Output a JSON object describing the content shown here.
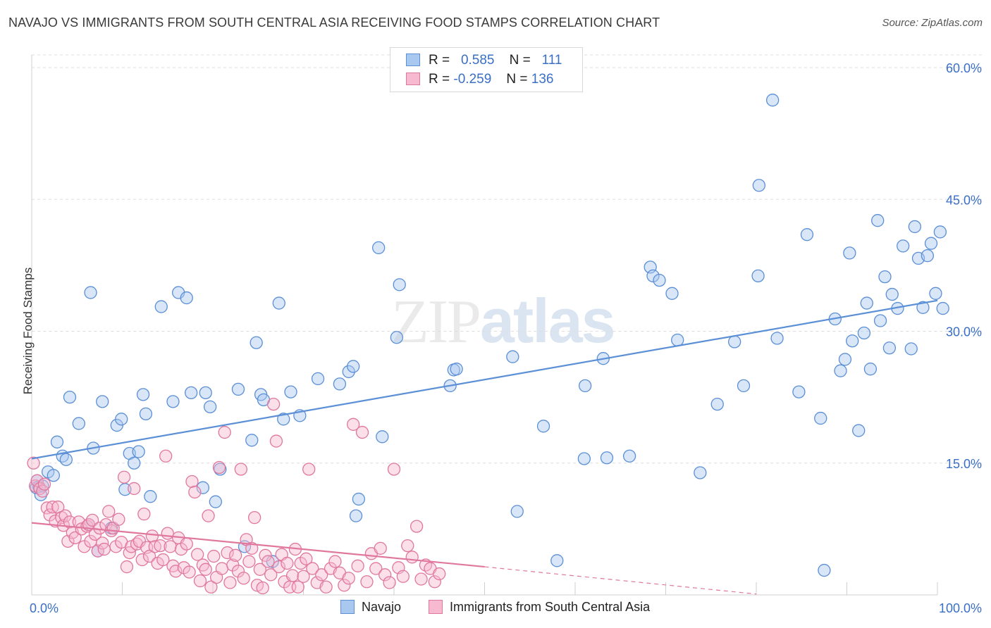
{
  "title": "NAVAJO VS IMMIGRANTS FROM SOUTH CENTRAL ASIA RECEIVING FOOD STAMPS CORRELATION CHART",
  "source": "Source: ZipAtlas.com",
  "watermark": {
    "zip": "ZIP",
    "atlas": "atlas"
  },
  "stats": [
    {
      "r_label": "R =",
      "r_value": "0.585",
      "n_label": "N =",
      "n_value": "111",
      "color": "#a9c8f0",
      "edge": "#5b8fd6"
    },
    {
      "r_label": "R =",
      "r_value": "-0.259",
      "n_label": "N =",
      "n_value": "136",
      "color": "#f7b9cf",
      "edge": "#e0789e"
    }
  ],
  "legend": [
    {
      "label": "Navajo",
      "color": "#a9c8f0",
      "edge": "#5b8fd6"
    },
    {
      "label": "Immigrants from South Central Asia",
      "color": "#f7b9cf",
      "edge": "#e0789e"
    }
  ],
  "chart_data": {
    "type": "scatter",
    "title": "NAVAJO VS IMMIGRANTS FROM SOUTH CENTRAL ASIA RECEIVING FOOD STAMPS CORRELATION CHART",
    "xlabel": "",
    "ylabel": "Receiving Food Stamps",
    "xlim": [
      0,
      100
    ],
    "ylim": [
      0,
      60
    ],
    "x_tick_labels": [
      "0.0%",
      "100.0%"
    ],
    "y_ticks": [
      15,
      30,
      45,
      60
    ],
    "y_tick_labels": [
      "15.0%",
      "30.0%",
      "45.0%",
      "60.0%"
    ],
    "grid": true,
    "legend_position": "bottom-center",
    "series": [
      {
        "name": "Navajo",
        "color": "#5b8fd6",
        "fill": "#a9c8f0",
        "trend": {
          "x": [
            0,
            100
          ],
          "y": [
            15.5,
            33.5
          ],
          "style": "solid"
        },
        "points": [
          [
            0.5,
            12.2
          ],
          [
            0.6,
            13.0
          ],
          [
            0.8,
            12.3
          ],
          [
            1.0,
            11.4
          ],
          [
            1.2,
            12.4
          ],
          [
            1.8,
            14.0
          ],
          [
            2.4,
            13.6
          ],
          [
            2.8,
            17.4
          ],
          [
            3.4,
            15.8
          ],
          [
            3.8,
            15.4
          ],
          [
            4.2,
            22.5
          ],
          [
            5.2,
            19.5
          ],
          [
            6.3,
            8.0
          ],
          [
            6.5,
            34.4
          ],
          [
            6.8,
            16.7
          ],
          [
            7.3,
            5.0
          ],
          [
            7.8,
            22.0
          ],
          [
            8.8,
            7.6
          ],
          [
            9.4,
            19.3
          ],
          [
            9.9,
            20.0
          ],
          [
            10.3,
            12.0
          ],
          [
            10.8,
            16.1
          ],
          [
            11.3,
            15.0
          ],
          [
            11.8,
            16.3
          ],
          [
            12.3,
            22.8
          ],
          [
            12.6,
            20.6
          ],
          [
            13.1,
            11.2
          ],
          [
            14.3,
            32.8
          ],
          [
            15.6,
            22.0
          ],
          [
            16.2,
            34.4
          ],
          [
            17.1,
            33.8
          ],
          [
            17.6,
            23.0
          ],
          [
            18.9,
            12.2
          ],
          [
            19.2,
            23.0
          ],
          [
            19.7,
            21.4
          ],
          [
            20.3,
            10.6
          ],
          [
            20.8,
            14.3
          ],
          [
            22.8,
            23.4
          ],
          [
            23.5,
            5.5
          ],
          [
            24.3,
            17.6
          ],
          [
            24.8,
            28.7
          ],
          [
            25.3,
            22.8
          ],
          [
            25.6,
            22.2
          ],
          [
            26.6,
            3.8
          ],
          [
            27.3,
            33.2
          ],
          [
            27.8,
            20.0
          ],
          [
            28.6,
            23.1
          ],
          [
            29.6,
            20.4
          ],
          [
            31.6,
            24.6
          ],
          [
            34.0,
            24.0
          ],
          [
            35.0,
            25.4
          ],
          [
            35.5,
            26.0
          ],
          [
            35.8,
            9.0
          ],
          [
            36.1,
            10.9
          ],
          [
            38.7,
            18.0
          ],
          [
            38.3,
            39.5
          ],
          [
            40.3,
            29.3
          ],
          [
            40.6,
            35.3
          ],
          [
            46.2,
            23.8
          ],
          [
            46.6,
            25.6
          ],
          [
            46.9,
            25.7
          ],
          [
            53.1,
            27.1
          ],
          [
            53.6,
            9.5
          ],
          [
            56.5,
            19.2
          ],
          [
            58.0,
            3.9
          ],
          [
            61.0,
            15.5
          ],
          [
            61.1,
            23.8
          ],
          [
            63.5,
            15.6
          ],
          [
            63.1,
            26.9
          ],
          [
            66.0,
            15.8
          ],
          [
            68.3,
            37.3
          ],
          [
            68.6,
            36.3
          ],
          [
            69.3,
            35.8
          ],
          [
            70.7,
            34.3
          ],
          [
            71.3,
            29.0
          ],
          [
            73.8,
            13.9
          ],
          [
            75.7,
            21.7
          ],
          [
            77.6,
            28.8
          ],
          [
            78.6,
            23.8
          ],
          [
            80.2,
            36.3
          ],
          [
            80.3,
            46.6
          ],
          [
            81.8,
            56.3
          ],
          [
            82.3,
            29.2
          ],
          [
            84.7,
            23.1
          ],
          [
            85.6,
            41.0
          ],
          [
            87.1,
            20.1
          ],
          [
            87.5,
            2.8
          ],
          [
            88.7,
            31.4
          ],
          [
            89.3,
            25.5
          ],
          [
            89.8,
            26.8
          ],
          [
            90.3,
            38.9
          ],
          [
            90.6,
            28.9
          ],
          [
            91.3,
            18.7
          ],
          [
            91.9,
            29.8
          ],
          [
            92.2,
            33.2
          ],
          [
            92.6,
            25.7
          ],
          [
            93.4,
            42.6
          ],
          [
            93.7,
            31.2
          ],
          [
            94.2,
            36.2
          ],
          [
            94.7,
            28.1
          ],
          [
            95.0,
            34.2
          ],
          [
            95.6,
            32.6
          ],
          [
            96.2,
            39.7
          ],
          [
            97.1,
            28.0
          ],
          [
            97.5,
            41.9
          ],
          [
            97.9,
            38.3
          ],
          [
            98.4,
            32.7
          ],
          [
            98.9,
            38.6
          ],
          [
            99.3,
            40.0
          ],
          [
            99.8,
            34.3
          ],
          [
            100.3,
            41.3
          ],
          [
            100.6,
            32.6
          ]
        ]
      },
      {
        "name": "Immigrants from South Central Asia",
        "color": "#e0789e",
        "fill": "#f7b9cf",
        "trend": {
          "x": [
            0,
            50
          ],
          "y": [
            8.2,
            3.2
          ],
          "style": "solid",
          "extension": {
            "x": [
              50,
              80
            ],
            "y": [
              3.2,
              0.1
            ],
            "style": "dashed"
          }
        },
        "points": [
          [
            0.2,
            15.0
          ],
          [
            0.4,
            12.4
          ],
          [
            0.6,
            13.0
          ],
          [
            0.9,
            12.1
          ],
          [
            1.2,
            11.8
          ],
          [
            1.4,
            12.6
          ],
          [
            1.7,
            9.9
          ],
          [
            2.0,
            9.1
          ],
          [
            2.3,
            10.0
          ],
          [
            2.6,
            8.4
          ],
          [
            2.9,
            10.0
          ],
          [
            3.3,
            8.8
          ],
          [
            3.5,
            7.9
          ],
          [
            3.7,
            9.0
          ],
          [
            4.0,
            6.1
          ],
          [
            4.2,
            8.3
          ],
          [
            4.5,
            7.1
          ],
          [
            4.8,
            6.5
          ],
          [
            5.2,
            8.3
          ],
          [
            5.5,
            7.5
          ],
          [
            5.8,
            5.5
          ],
          [
            6.1,
            7.8
          ],
          [
            6.3,
            8.0
          ],
          [
            6.5,
            6.1
          ],
          [
            6.7,
            8.5
          ],
          [
            7.0,
            6.9
          ],
          [
            7.3,
            5.0
          ],
          [
            7.5,
            7.6
          ],
          [
            7.8,
            5.9
          ],
          [
            8.0,
            5.2
          ],
          [
            8.2,
            8.0
          ],
          [
            8.5,
            9.5
          ],
          [
            8.8,
            7.3
          ],
          [
            9.0,
            7.6
          ],
          [
            9.3,
            5.5
          ],
          [
            9.6,
            8.6
          ],
          [
            9.9,
            6.0
          ],
          [
            10.2,
            13.4
          ],
          [
            10.5,
            3.2
          ],
          [
            10.8,
            4.8
          ],
          [
            11.0,
            5.5
          ],
          [
            11.3,
            12.1
          ],
          [
            11.6,
            5.8
          ],
          [
            11.9,
            6.1
          ],
          [
            12.2,
            4.0
          ],
          [
            12.4,
            9.2
          ],
          [
            12.7,
            5.4
          ],
          [
            13.0,
            4.4
          ],
          [
            13.3,
            6.7
          ],
          [
            13.6,
            5.5
          ],
          [
            13.9,
            3.6
          ],
          [
            14.2,
            5.6
          ],
          [
            14.5,
            4.0
          ],
          [
            14.8,
            15.8
          ],
          [
            15.0,
            7.0
          ],
          [
            15.3,
            5.5
          ],
          [
            15.6,
            3.3
          ],
          [
            15.9,
            2.7
          ],
          [
            16.2,
            6.5
          ],
          [
            16.5,
            5.2
          ],
          [
            16.8,
            3.1
          ],
          [
            17.1,
            5.8
          ],
          [
            17.4,
            2.6
          ],
          [
            17.7,
            12.9
          ],
          [
            18.0,
            11.7
          ],
          [
            18.3,
            4.6
          ],
          [
            18.6,
            1.6
          ],
          [
            18.9,
            3.4
          ],
          [
            19.2,
            2.9
          ],
          [
            19.5,
            9.0
          ],
          [
            19.8,
            0.9
          ],
          [
            20.1,
            4.4
          ],
          [
            20.4,
            2.0
          ],
          [
            20.7,
            14.5
          ],
          [
            21.0,
            3.0
          ],
          [
            21.3,
            18.5
          ],
          [
            21.6,
            4.8
          ],
          [
            21.9,
            1.4
          ],
          [
            22.2,
            3.4
          ],
          [
            22.5,
            4.5
          ],
          [
            22.8,
            2.7
          ],
          [
            23.1,
            14.3
          ],
          [
            23.4,
            1.9
          ],
          [
            23.7,
            6.3
          ],
          [
            24.0,
            3.8
          ],
          [
            24.3,
            5.3
          ],
          [
            24.6,
            8.8
          ],
          [
            24.9,
            1.1
          ],
          [
            25.2,
            2.9
          ],
          [
            25.5,
            0.8
          ],
          [
            25.8,
            4.5
          ],
          [
            26.1,
            3.8
          ],
          [
            26.4,
            2.3
          ],
          [
            26.7,
            21.7
          ],
          [
            27.0,
            17.5
          ],
          [
            27.3,
            3.2
          ],
          [
            27.6,
            4.6
          ],
          [
            27.9,
            1.5
          ],
          [
            28.2,
            3.6
          ],
          [
            28.5,
            0.9
          ],
          [
            28.8,
            2.2
          ],
          [
            29.1,
            5.2
          ],
          [
            29.4,
            0.9
          ],
          [
            29.7,
            3.6
          ],
          [
            30.0,
            2.1
          ],
          [
            30.3,
            4.1
          ],
          [
            30.6,
            14.3
          ],
          [
            31.0,
            3.0
          ],
          [
            31.5,
            1.4
          ],
          [
            32.0,
            2.3
          ],
          [
            32.5,
            0.9
          ],
          [
            33.0,
            3.0
          ],
          [
            33.5,
            3.8
          ],
          [
            34.0,
            2.5
          ],
          [
            34.5,
            1.1
          ],
          [
            35.0,
            1.9
          ],
          [
            35.5,
            19.4
          ],
          [
            36.0,
            3.3
          ],
          [
            36.5,
            18.5
          ],
          [
            37.0,
            1.5
          ],
          [
            37.5,
            4.7
          ],
          [
            38.0,
            3.0
          ],
          [
            38.5,
            5.3
          ],
          [
            39.0,
            2.3
          ],
          [
            39.5,
            1.4
          ],
          [
            40.0,
            14.3
          ],
          [
            40.5,
            3.1
          ],
          [
            41.0,
            2.1
          ],
          [
            41.5,
            5.6
          ],
          [
            42.0,
            4.3
          ],
          [
            42.5,
            7.8
          ],
          [
            43.0,
            1.8
          ],
          [
            43.5,
            3.4
          ],
          [
            44.0,
            3.0
          ],
          [
            44.5,
            1.5
          ],
          [
            45.0,
            2.4
          ]
        ]
      }
    ]
  }
}
